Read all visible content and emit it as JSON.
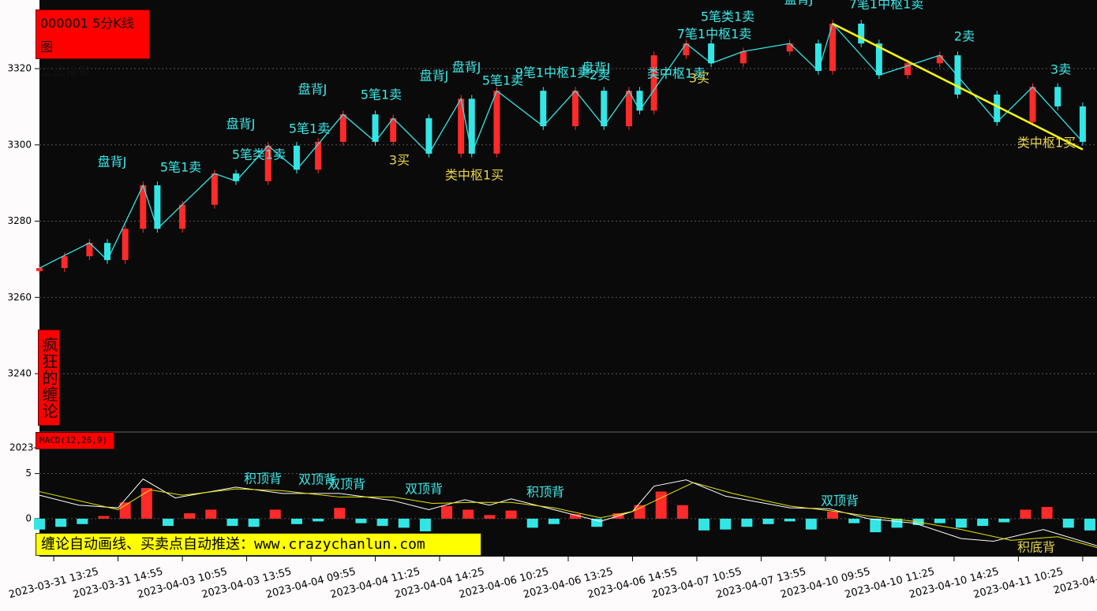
{
  "chart_data": [
    {
      "type": "candlestick",
      "title": "000001 5分K线图",
      "subtitle": "上证指数",
      "watermark": "疯狂的缠论",
      "x": [
        0,
        7,
        14,
        19,
        24,
        29,
        33,
        40,
        49,
        55,
        64,
        72,
        78,
        85,
        94,
        99,
        109,
        118,
        121,
        128,
        141,
        150,
        158,
        165,
        168,
        172,
        181,
        188,
        197,
        210,
        218,
        222,
        230,
        235,
        243,
        252,
        257,
        268,
        278,
        285,
        292
      ],
      "open": [
        3266.9,
        3267.7,
        3270.8,
        3274.3,
        3269.8,
        3278.0,
        3289.4,
        3278.0,
        3284.3,
        3292.5,
        3290.5,
        3299.8,
        3293.5,
        3300.8,
        3308.0,
        3300.8,
        3307.0,
        3297.7,
        3312.1,
        3297.7,
        3314.2,
        3304.9,
        3314.2,
        3304.9,
        3314.2,
        3309.0,
        3323.5,
        3326.6,
        3321.4,
        3324.5,
        3326.6,
        3319.4,
        3331.8,
        3326.6,
        3318.3,
        3321.4,
        3323.5,
        3313.2,
        3306.0,
        3315.2,
        3310.1
      ],
      "high": [
        3268.7,
        3271.8,
        3275.3,
        3275.3,
        3279.0,
        3290.4,
        3290.4,
        3285.3,
        3293.5,
        3293.5,
        3300.8,
        3300.8,
        3301.8,
        3309.0,
        3309.0,
        3308.0,
        3308.0,
        3313.1,
        3313.1,
        3315.2,
        3315.2,
        3315.2,
        3315.2,
        3315.2,
        3315.2,
        3324.5,
        3327.6,
        3327.6,
        3325.5,
        3327.6,
        3327.6,
        3332.8,
        3332.8,
        3327.6,
        3322.4,
        3324.5,
        3324.5,
        3314.2,
        3316.2,
        3316.2,
        3311.1
      ],
      "low": [
        3265.9,
        3266.7,
        3269.8,
        3268.8,
        3268.8,
        3277.0,
        3277.0,
        3277.0,
        3283.3,
        3289.5,
        3289.5,
        3292.5,
        3292.5,
        3299.8,
        3299.8,
        3299.8,
        3296.7,
        3296.7,
        3296.7,
        3296.7,
        3303.9,
        3303.9,
        3303.9,
        3303.9,
        3308.0,
        3308.0,
        3322.5,
        3320.4,
        3320.4,
        3323.5,
        3318.4,
        3318.4,
        3325.6,
        3317.3,
        3317.3,
        3320.4,
        3312.2,
        3305.0,
        3305.0,
        3309.1,
        3299.8
      ],
      "close": [
        3267.7,
        3270.8,
        3274.3,
        3269.8,
        3278.0,
        3289.4,
        3278.0,
        3284.3,
        3292.5,
        3290.5,
        3299.8,
        3293.5,
        3300.8,
        3308.0,
        3300.8,
        3307.0,
        3297.7,
        3312.1,
        3297.7,
        3314.2,
        3304.9,
        3314.2,
        3304.9,
        3314.2,
        3309.0,
        3323.5,
        3326.6,
        3321.4,
        3324.5,
        3326.6,
        3319.4,
        3331.8,
        3326.6,
        3318.3,
        3321.4,
        3323.5,
        3313.2,
        3306.0,
        3315.2,
        3310.1,
        3300.8
      ],
      "up_color": "#ff2a2a",
      "down_color": "#33e6e6",
      "strokes": {
        "color": "#33e6e6",
        "x": [
          0,
          14,
          19,
          29,
          33,
          49,
          55,
          64,
          72,
          85,
          94,
          99,
          109,
          118,
          121,
          128,
          141,
          150,
          158,
          165,
          168,
          181,
          188,
          197,
          210,
          218,
          222,
          235,
          252,
          268,
          278,
          292
        ],
        "values": [
          3267.7,
          3274.3,
          3269.8,
          3289.4,
          3278.0,
          3292.5,
          3290.5,
          3299.8,
          3293.5,
          3308.0,
          3300.8,
          3307.0,
          3297.7,
          3312.1,
          3297.7,
          3314.2,
          3304.9,
          3314.2,
          3304.9,
          3314.2,
          3309.0,
          3326.6,
          3321.4,
          3324.5,
          3326.6,
          3319.4,
          3331.8,
          3318.3,
          3323.5,
          3306.0,
          3315.2,
          3300.8
        ]
      },
      "segment": {
        "color": "#ffff00",
        "x": [
          222,
          292
        ],
        "values": [
          3331.8,
          3298.8
        ]
      },
      "xlim": [
        0,
        296
      ],
      "ylim": [
        3224.7,
        3338.0
      ],
      "yticks": [
        3240,
        3260,
        3280,
        3300,
        3320
      ],
      "grid": true,
      "annotations": [
        {
          "text": "盘背J",
          "color": "#3ee8e8"
        },
        {
          "text": "5笔1卖",
          "color": "#3ee8e8"
        },
        {
          "text": "盘背J",
          "color": "#3ee8e8"
        },
        {
          "text": "5笔类1卖",
          "color": "#3ee8e8"
        },
        {
          "text": "5笔1卖",
          "color": "#3ee8e8"
        },
        {
          "text": "盘背J",
          "color": "#3ee8e8"
        },
        {
          "text": "5笔1卖",
          "color": "#3ee8e8"
        },
        {
          "text": "3买",
          "color": "#e8d44a"
        },
        {
          "text": "盘背J",
          "color": "#3ee8e8"
        },
        {
          "text": "盘背J",
          "color": "#3ee8e8"
        },
        {
          "text": "类中枢1买",
          "color": "#e8d44a"
        },
        {
          "text": "5笔1卖",
          "color": "#3ee8e8"
        },
        {
          "text": "9笔1中枢1卖",
          "color": "#3ee8e8"
        },
        {
          "text": "盘背J",
          "color": "#3ee8e8"
        },
        {
          "text": "2卖",
          "color": "#3ee8e8"
        },
        {
          "text": "类中枢1卖",
          "color": "#3ee8e8"
        },
        {
          "text": "3买",
          "color": "#e8d44a"
        },
        {
          "text": "7笔1中枢1卖",
          "color": "#3ee8e8"
        },
        {
          "text": "5笔类1卖",
          "color": "#3ee8e8"
        },
        {
          "text": "盘背J",
          "color": "#3ee8e8"
        },
        {
          "text": "7笔1中枢1卖",
          "color": "#3ee8e8"
        },
        {
          "text": "2卖",
          "color": "#3ee8e8"
        },
        {
          "text": "3卖",
          "color": "#3ee8e8"
        },
        {
          "text": "类中枢1买",
          "color": "#e8d44a"
        }
      ]
    },
    {
      "type": "macd",
      "title": "MACD(12,26,9)",
      "corner_label": "2023-",
      "banner": "缠论自动画线、买卖点自动推送：www.crazychanlun.com",
      "histogram": {
        "up_color": "#ff2a2a",
        "down_color": "#33e6e6",
        "x": [
          0,
          6,
          12,
          18,
          24,
          30,
          36,
          42,
          48,
          54,
          60,
          66,
          72,
          78,
          84,
          90,
          96,
          102,
          108,
          114,
          120,
          126,
          132,
          138,
          144,
          150,
          156,
          162,
          168,
          174,
          180,
          186,
          192,
          198,
          204,
          210,
          216,
          222,
          228,
          234,
          240,
          246,
          252,
          258,
          264,
          270,
          276,
          282,
          288,
          294
        ],
        "values": [
          -1.2,
          -0.9,
          -0.6,
          0.3,
          1.8,
          3.4,
          -0.8,
          0.6,
          1.0,
          -0.8,
          -0.9,
          1.0,
          -0.6,
          -0.3,
          1.2,
          -0.5,
          -0.8,
          -1.0,
          -1.4,
          1.4,
          1.0,
          0.4,
          0.9,
          -1.0,
          -0.6,
          0.5,
          -0.9,
          0.6,
          1.5,
          3.0,
          1.5,
          -1.3,
          -1.2,
          -0.9,
          -0.6,
          -0.3,
          -1.2,
          0.8,
          -0.5,
          -1.5,
          -1.0,
          -0.7,
          -0.5,
          -1.0,
          -0.8,
          -0.4,
          1.0,
          1.3,
          -1.0,
          -1.3
        ]
      },
      "series": [
        {
          "color": "#ffffff",
          "x": [
            0,
            11,
            22,
            29,
            38,
            55,
            68,
            84,
            99,
            109,
            119,
            126,
            132,
            144,
            157,
            166,
            172,
            181,
            192,
            210,
            221,
            232,
            245,
            258,
            267,
            281,
            296
          ],
          "values": [
            2.6,
            1.5,
            1.2,
            4.4,
            2.3,
            3.5,
            2.8,
            2.8,
            2.0,
            1.0,
            2.1,
            1.5,
            2.2,
            1.0,
            -0.3,
            0.8,
            3.6,
            4.3,
            2.5,
            1.2,
            1.1,
            0.0,
            -0.5,
            -2.2,
            -2.5,
            -1.2,
            -3.0
          ]
        },
        {
          "color": "#e6e600",
          "x": [
            0,
            11,
            22,
            31,
            40,
            55,
            68,
            84,
            99,
            110,
            121,
            132,
            144,
            157,
            166,
            175,
            183,
            194,
            210,
            221,
            232,
            245,
            258,
            272,
            285,
            296
          ],
          "values": [
            3.0,
            2.0,
            1.0,
            3.2,
            2.6,
            3.3,
            3.1,
            2.4,
            2.4,
            1.7,
            1.8,
            1.8,
            1.2,
            0.1,
            0.8,
            2.5,
            4.0,
            2.8,
            1.4,
            0.9,
            0.3,
            -0.3,
            -1.2,
            -2.4,
            -2.0,
            -3.2
          ]
        }
      ],
      "xlim": [
        0,
        296
      ],
      "ylim": [
        -4.2,
        9.6
      ],
      "yticks": [
        0,
        5
      ],
      "grid": true,
      "xticks": [
        {
          "value": 4,
          "label": "2023-03-31 13:25"
        },
        {
          "value": 22,
          "label": "2023-03-31 14:55"
        },
        {
          "value": 40,
          "label": "2023-04-03 10:55"
        },
        {
          "value": 58,
          "label": "2023-04-03 13:55"
        },
        {
          "value": 76,
          "label": "2023-04-04 09:55"
        },
        {
          "value": 94,
          "label": "2023-04-04 11:25"
        },
        {
          "value": 112,
          "label": "2023-04-04 14:25"
        },
        {
          "value": 130,
          "label": "2023-04-06 10:25"
        },
        {
          "value": 148,
          "label": "2023-04-06 13:25"
        },
        {
          "value": 166,
          "label": "2023-04-06 14:55"
        },
        {
          "value": 184,
          "label": "2023-04-07 10:55"
        },
        {
          "value": 202,
          "label": "2023-04-07 13:55"
        },
        {
          "value": 220,
          "label": "2023-04-10 09:55"
        },
        {
          "value": 238,
          "label": "2023-04-10 11:25"
        },
        {
          "value": 256,
          "label": "2023-04-10 14:25"
        },
        {
          "value": 274,
          "label": "2023-04-11 10:25"
        },
        {
          "value": 292,
          "label": "2023-04-11"
        }
      ],
      "annotations": [
        {
          "text": "积顶背",
          "color": "#3ee8e8"
        },
        {
          "text": "双顶背",
          "color": "#3ee8e8"
        },
        {
          "text": "双顶背",
          "color": "#3ee8e8"
        },
        {
          "text": "双顶背",
          "color": "#3ee8e8"
        },
        {
          "text": "积顶背",
          "color": "#3ee8e8"
        },
        {
          "text": "双顶背",
          "color": "#3ee8e8"
        },
        {
          "text": "积底背",
          "color": "#e8d44a"
        }
      ]
    }
  ]
}
